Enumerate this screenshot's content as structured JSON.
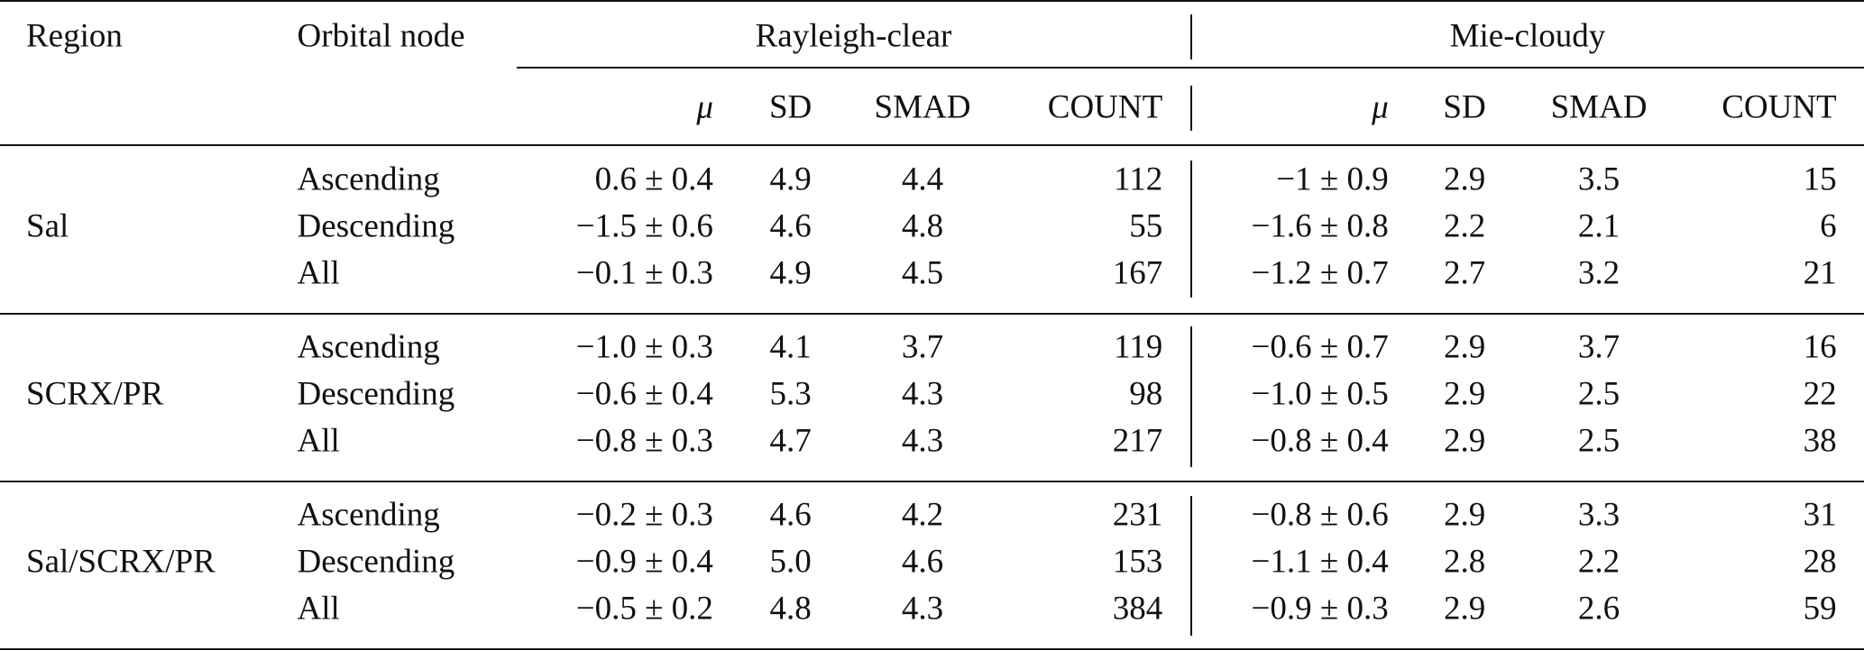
{
  "header": {
    "region": "Region",
    "node": "Orbital node",
    "groups": [
      {
        "title": "Rayleigh-clear",
        "columns": [
          "μ",
          "SD",
          "SMAD",
          "COUNT"
        ]
      },
      {
        "title": "Mie-cloudy",
        "columns": [
          "μ",
          "SD",
          "SMAD",
          "COUNT"
        ]
      }
    ]
  },
  "regions": [
    {
      "name": "Sal",
      "rows": [
        {
          "node": "Ascending",
          "cells": [
            "0.6 ± 0.4",
            "4.9",
            "4.4",
            "112",
            "−1 ± 0.9",
            "2.9",
            "3.5",
            "15"
          ]
        },
        {
          "node": "Descending",
          "cells": [
            "−1.5 ± 0.6",
            "4.6",
            "4.8",
            "55",
            "−1.6 ± 0.8",
            "2.2",
            "2.1",
            "6"
          ]
        },
        {
          "node": "All",
          "cells": [
            "−0.1 ± 0.3",
            "4.9",
            "4.5",
            "167",
            "−1.2 ± 0.7",
            "2.7",
            "3.2",
            "21"
          ]
        }
      ]
    },
    {
      "name": "SCRX/PR",
      "rows": [
        {
          "node": "Ascending",
          "cells": [
            "−1.0 ± 0.3",
            "4.1",
            "3.7",
            "119",
            "−0.6 ± 0.7",
            "2.9",
            "3.7",
            "16"
          ]
        },
        {
          "node": "Descending",
          "cells": [
            "−0.6 ± 0.4",
            "5.3",
            "4.3",
            "98",
            "−1.0 ± 0.5",
            "2.9",
            "2.5",
            "22"
          ]
        },
        {
          "node": "All",
          "cells": [
            "−0.8 ± 0.3",
            "4.7",
            "4.3",
            "217",
            "−0.8 ± 0.4",
            "2.9",
            "2.5",
            "38"
          ]
        }
      ]
    },
    {
      "name": "Sal/SCRX/PR",
      "rows": [
        {
          "node": "Ascending",
          "cells": [
            "−0.2 ± 0.3",
            "4.6",
            "4.2",
            "231",
            "−0.8 ± 0.6",
            "2.9",
            "3.3",
            "31"
          ]
        },
        {
          "node": "Descending",
          "cells": [
            "−0.9 ± 0.4",
            "5.0",
            "4.6",
            "153",
            "−1.1 ± 0.4",
            "2.8",
            "2.2",
            "28"
          ]
        },
        {
          "node": "All",
          "cells": [
            "−0.5 ± 0.2",
            "4.8",
            "4.3",
            "384",
            "−0.9 ± 0.3",
            "2.9",
            "2.6",
            "59"
          ]
        }
      ]
    }
  ]
}
